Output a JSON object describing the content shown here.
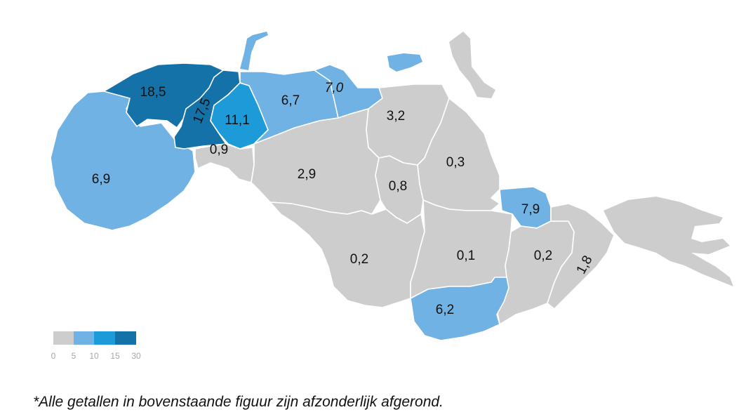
{
  "colors": {
    "bin_0_5": "#cdcdcd",
    "bin_5_10": "#6fb2e3",
    "bin_10_15": "#1c9bd8",
    "bin_15_30": "#1472a8",
    "background": "#ffffff",
    "border": "#ffffff"
  },
  "regions": [
    {
      "id": "noordwest",
      "value": "18,5",
      "bin": 3
    },
    {
      "id": "centrum-noord",
      "value": "17,5",
      "bin": 3
    },
    {
      "id": "centrum",
      "value": "11,1",
      "bin": 2
    },
    {
      "id": "kustwijk",
      "value": "6,9",
      "bin": 1
    },
    {
      "id": "noord-oost",
      "value": "6,7",
      "bin": 1
    },
    {
      "id": "havengebied-noord",
      "value": "7,0",
      "bin": 1
    },
    {
      "id": "haven-zuid",
      "value": "0,9",
      "bin": 0
    },
    {
      "id": "west-binnen",
      "value": "2,9",
      "bin": 0
    },
    {
      "id": "noord-centraal",
      "value": "3,2",
      "bin": 0
    },
    {
      "id": "midden",
      "value": "0,8",
      "bin": 0
    },
    {
      "id": "oost-centraal",
      "value": "0,3",
      "bin": 0
    },
    {
      "id": "oost-wijk",
      "value": "7,9",
      "bin": 1
    },
    {
      "id": "zuidwest",
      "value": "0,2",
      "bin": 0
    },
    {
      "id": "zuid-centraal",
      "value": "0,1",
      "bin": 0
    },
    {
      "id": "zuidoost",
      "value": "0,2",
      "bin": 0
    },
    {
      "id": "oostpunt",
      "value": "1,8",
      "bin": 0
    },
    {
      "id": "zuidkust",
      "value": "6,2",
      "bin": 1
    }
  ],
  "legend": {
    "ticks": [
      "0",
      "5",
      "10",
      "15",
      "30"
    ]
  },
  "footnote": "*Alle getallen in bovenstaande figuur zijn afzonderlijk afgerond."
}
